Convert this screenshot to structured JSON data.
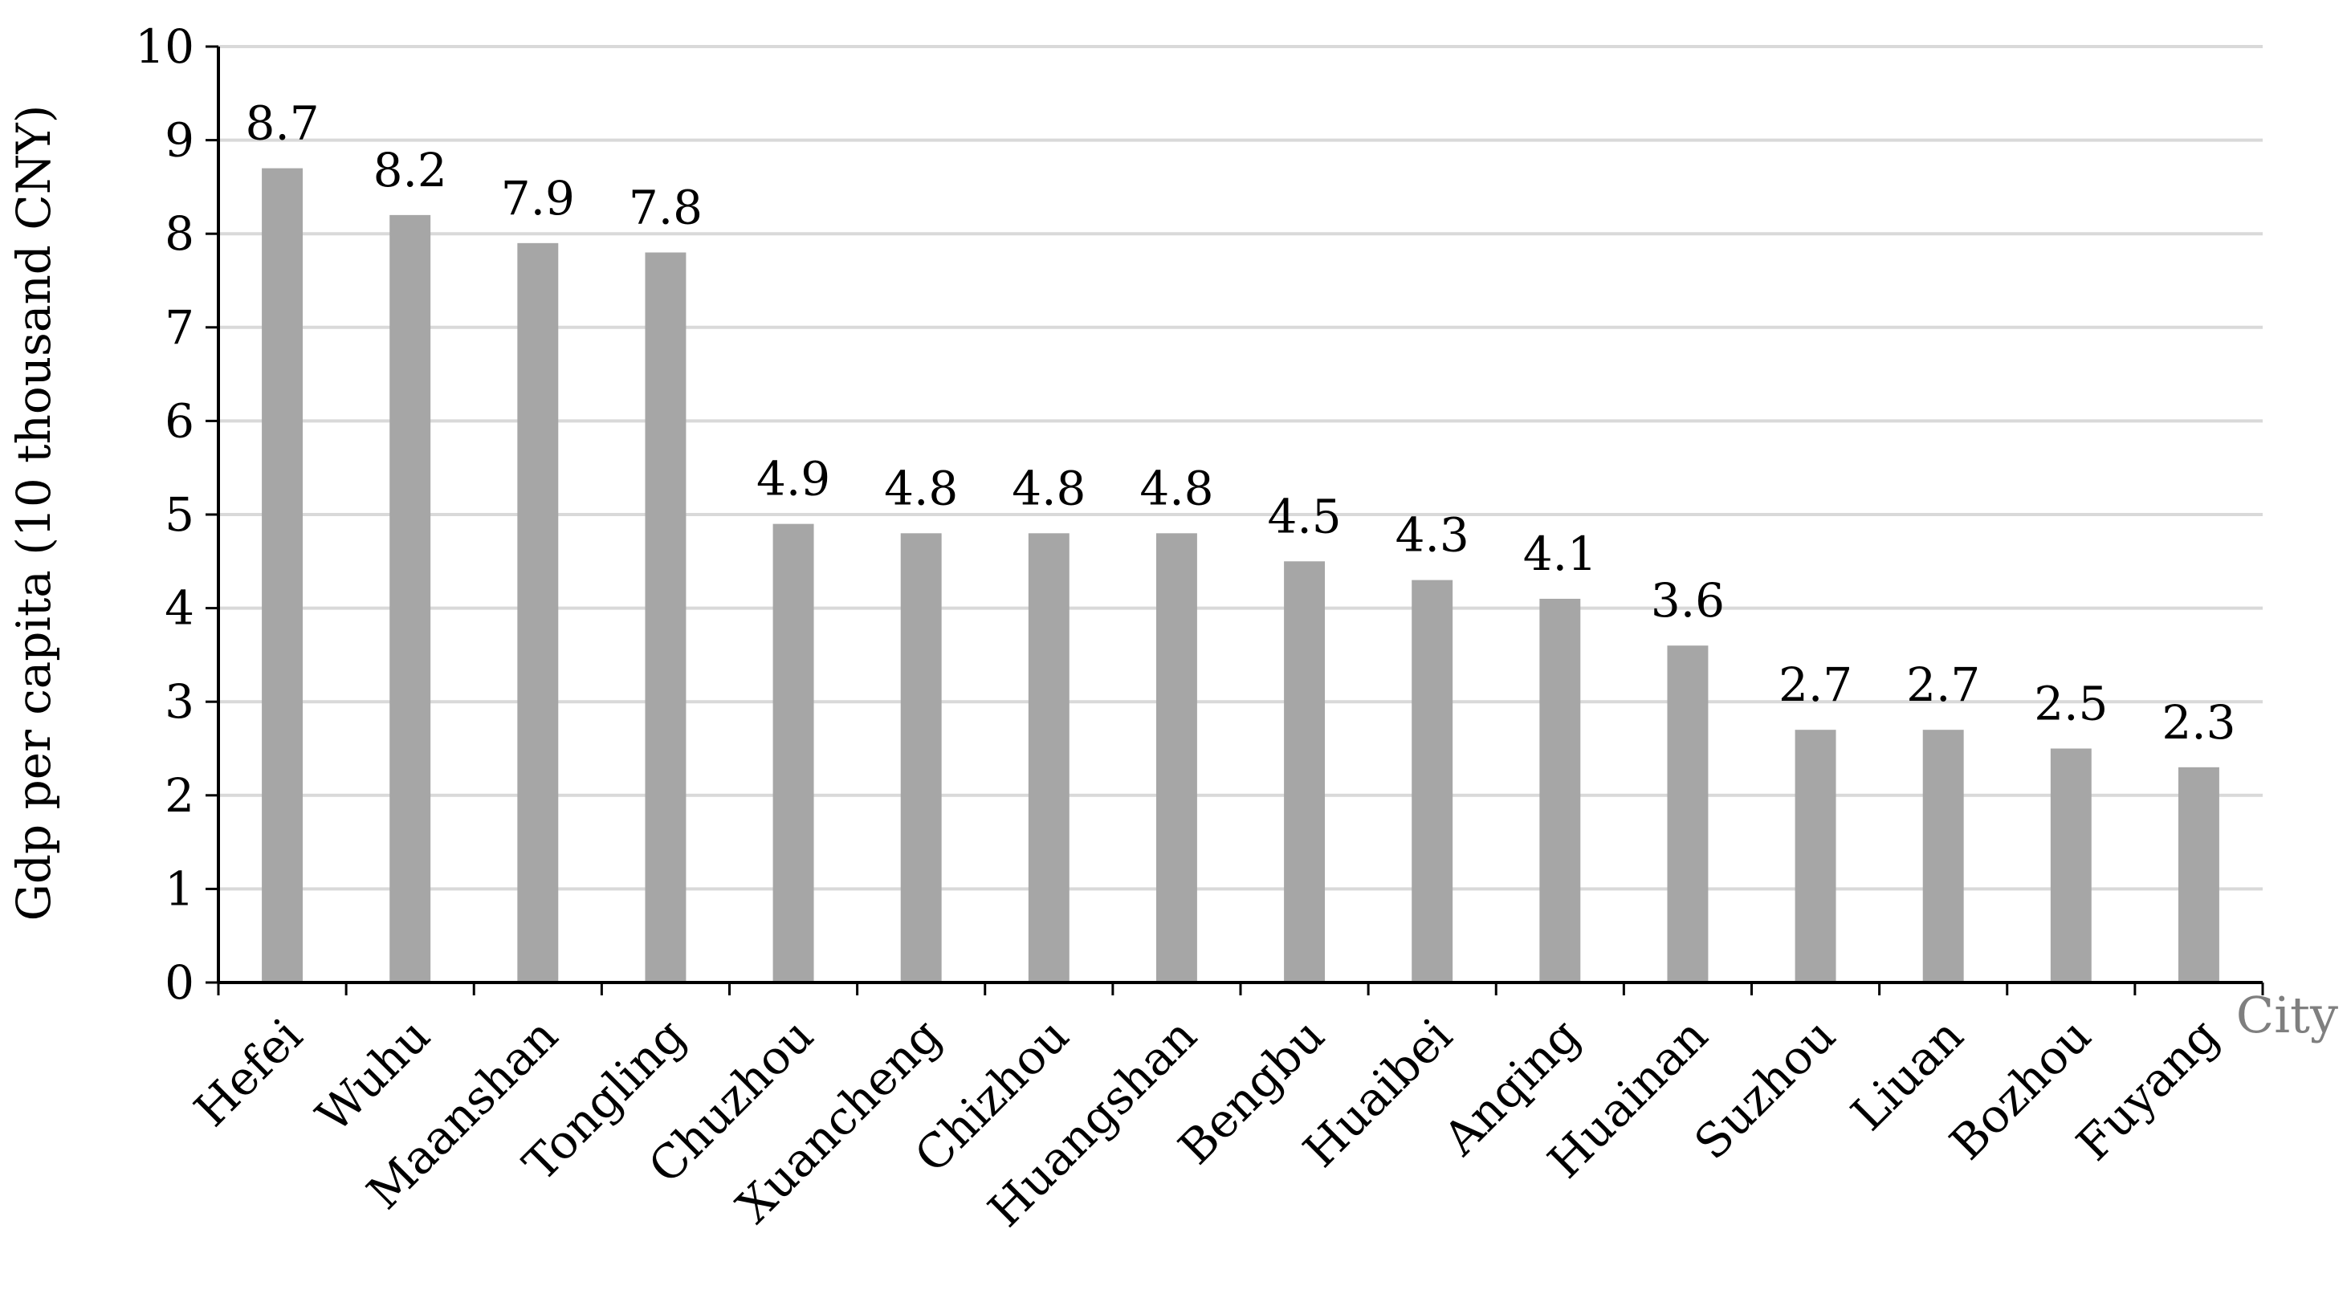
{
  "chart_data": {
    "type": "bar",
    "categories": [
      "Hefei",
      "Wuhu",
      "Maanshan",
      "Tongling",
      "Chuzhou",
      "Xuancheng",
      "Chizhou",
      "Huangshan",
      "Bengbu",
      "Huaibei",
      "Anqing",
      "Huainan",
      "Suzhou",
      "Liuan",
      "Bozhou",
      "Fuyang"
    ],
    "values": [
      8.7,
      8.2,
      7.9,
      7.8,
      4.9,
      4.8,
      4.8,
      4.8,
      4.5,
      4.3,
      4.1,
      3.6,
      2.7,
      2.7,
      2.5,
      2.3
    ],
    "data_labels": [
      "8.7",
      "8.2",
      "7.9",
      "7.8",
      "4.9",
      "4.8",
      "4.8",
      "4.8",
      "4.5",
      "4.3",
      "4.1",
      "3.6",
      "2.7",
      "2.7",
      "2.5",
      "2.3"
    ],
    "title": "",
    "xlabel": "City",
    "ylabel": "Gdp per capita (10 thousand CNY)",
    "ylim": [
      0,
      10
    ],
    "yticks": [
      "0",
      "1",
      "2",
      "3",
      "4",
      "5",
      "6",
      "7",
      "8",
      "9",
      "10"
    ],
    "grid": true,
    "legend": "none",
    "bar_color": "#a6a6a6",
    "grid_color": "#d9d9d9",
    "axis_color": "#000000"
  }
}
